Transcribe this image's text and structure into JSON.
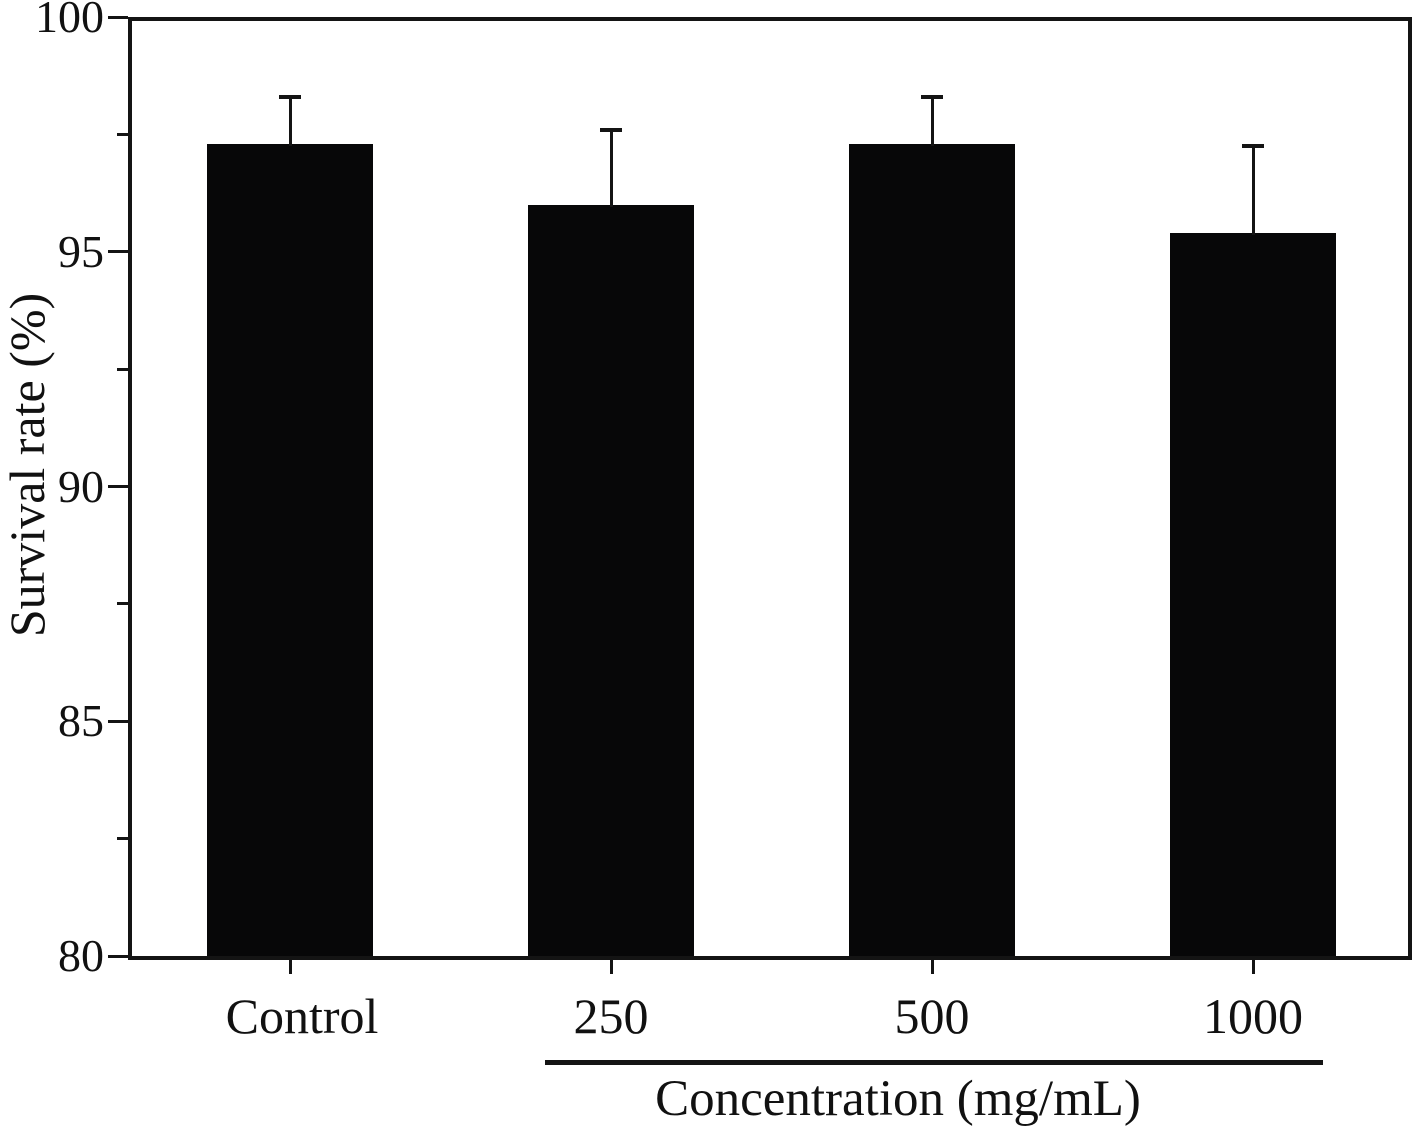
{
  "chart_data": {
    "type": "bar",
    "title": "",
    "categories": [
      "Control",
      "250",
      "500",
      "1000"
    ],
    "values": [
      97.3,
      96.0,
      97.3,
      95.4
    ],
    "errors": [
      1.0,
      1.6,
      1.0,
      1.85
    ],
    "error_bar_style": "upper-only",
    "ylabel": "Survival rate (%)",
    "xlabel": "",
    "group_axis_label": "Concentration (mg/mL)",
    "grouped_categories": [
      "250",
      "500",
      "1000"
    ],
    "ylim": [
      80,
      100
    ],
    "y_major_ticks": [
      80,
      85,
      90,
      95,
      100
    ],
    "y_minor_ticks": [
      82.5,
      87.5,
      92.5,
      97.5
    ],
    "grid": false,
    "legend": "none",
    "bar_color": "#070708",
    "axis_color": "#141414",
    "background_color": "#ffffff"
  }
}
